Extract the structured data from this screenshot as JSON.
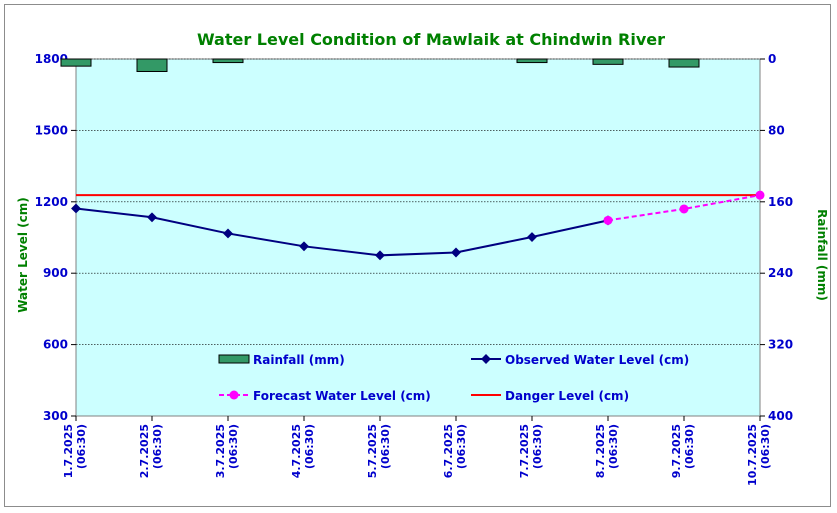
{
  "chart_data": {
    "type": "line",
    "title": "Water Level Condition of Mawlaik at Chindwin River",
    "ylabel_left": "Water Level (cm)",
    "ylabel_right": "Rainfall (mm)",
    "ylim_left": [
      300,
      1800
    ],
    "yticks_left": [
      300,
      600,
      900,
      1200,
      1500,
      1800
    ],
    "ylim_right": [
      0,
      400
    ],
    "yticks_right": [
      0,
      80,
      160,
      240,
      320,
      400
    ],
    "right_axis_inverted": true,
    "categories": [
      [
        "1.7.2025",
        "(06:30)"
      ],
      [
        "2.7.2025",
        "(06:30)"
      ],
      [
        "3.7.2025",
        "(06:30)"
      ],
      [
        "4.7.2025",
        "(06:30)"
      ],
      [
        "5.7.2025",
        "(06:30)"
      ],
      [
        "6.7.2025",
        "(06:30)"
      ],
      [
        "7.7.2025",
        "(06:30)"
      ],
      [
        "8.7.2025",
        "(06:30)"
      ],
      [
        "9.7.2025",
        "(06:30)"
      ],
      [
        "10.7.2025",
        "(06:30)"
      ]
    ],
    "series": [
      {
        "name": "Rainfall (mm)",
        "kind": "bar",
        "axis": "right",
        "color": "#339966",
        "values": [
          8,
          14,
          4,
          0,
          0,
          0,
          4,
          6,
          9,
          0
        ]
      },
      {
        "name": "Observed Water Level (cm)",
        "kind": "line",
        "axis": "left",
        "color": "#000080",
        "values": [
          1172,
          1135,
          1067,
          1013,
          975,
          987,
          1052,
          1122,
          null,
          null
        ]
      },
      {
        "name": "Forecast Water Level (cm)",
        "kind": "dashed-line",
        "axis": "left",
        "color": "#ff00ff",
        "values": [
          null,
          null,
          null,
          null,
          null,
          null,
          null,
          1122,
          1170,
          1228
        ]
      },
      {
        "name": "Danger Level (cm)",
        "kind": "constant-line",
        "axis": "left",
        "color": "#ff0000",
        "value": 1228
      }
    ],
    "plot_background": "#ccffff",
    "grid": true,
    "legend_position": "bottom-inside"
  }
}
